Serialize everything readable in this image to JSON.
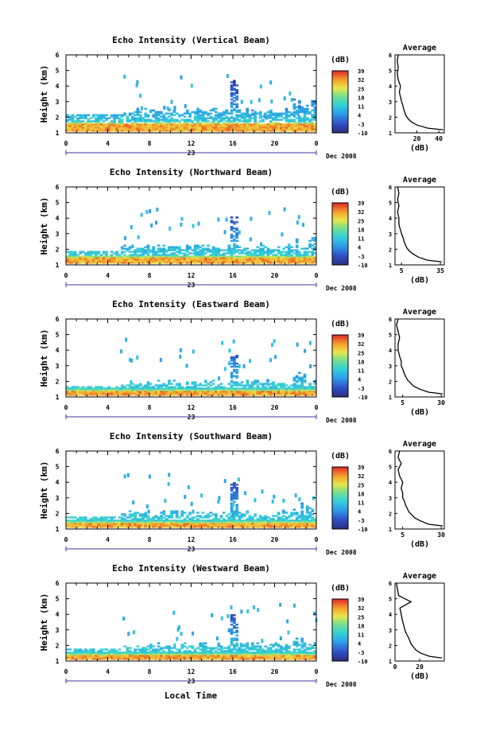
{
  "figure": {
    "xlabel_bottom": "Local Time",
    "day_label": "23",
    "date_label": "Dec 2008",
    "height_ylabel": "Height (km)",
    "cbar_unit": "(dB)",
    "avg_title": "Average",
    "avg_xlabel": "(dB)"
  },
  "chart_data": [
    {
      "type": "heatmap",
      "title": "Echo Intensity (Vertical Beam)",
      "xlim": [
        0,
        24
      ],
      "ylim": [
        1,
        6
      ],
      "x_ticks": [
        "0",
        "4",
        "8",
        "12",
        "16",
        "20",
        "0"
      ],
      "y_ticks": [
        "1",
        "2",
        "3",
        "4",
        "5",
        "6"
      ],
      "colorbar": {
        "ticks": [
          "39",
          "32",
          "25",
          "18",
          "11",
          "4",
          "-3",
          "-10"
        ],
        "range": [
          -10,
          39
        ]
      },
      "strong_layer": 1.4,
      "mid_top": 2.2,
      "average": {
        "title": "Average",
        "xlim": [
          0,
          45
        ],
        "xticks": [
          20,
          40
        ],
        "x": [
          44,
          30,
          20,
          15,
          12,
          10,
          9,
          8,
          7,
          6,
          5,
          4,
          5,
          3,
          2,
          3,
          2,
          3
        ],
        "y": [
          1.2,
          1.3,
          1.5,
          1.7,
          1.9,
          2.1,
          2.3,
          2.5,
          2.8,
          3.0,
          3.3,
          3.6,
          4.0,
          4.4,
          4.8,
          5.2,
          5.6,
          6.0
        ]
      }
    },
    {
      "type": "heatmap",
      "title": "Echo Intensity (Northward Beam)",
      "xlim": [
        0,
        24
      ],
      "ylim": [
        1,
        6
      ],
      "x_ticks": [
        "0",
        "4",
        "8",
        "12",
        "16",
        "20",
        "0"
      ],
      "y_ticks": [
        "1",
        "2",
        "3",
        "4",
        "5",
        "6"
      ],
      "colorbar": {
        "ticks": [
          "39",
          "32",
          "25",
          "18",
          "11",
          "4",
          "-3",
          "-10"
        ],
        "range": [
          -10,
          39
        ]
      },
      "strong_layer": 1.3,
      "mid_top": 1.9,
      "average": {
        "title": "Average",
        "xlim": [
          0,
          38
        ],
        "xticks": [
          5,
          35
        ],
        "x": [
          36,
          25,
          18,
          14,
          11,
          9,
          8,
          7,
          6,
          5,
          4,
          3,
          3,
          2,
          3,
          2,
          3,
          2
        ],
        "y": [
          1.2,
          1.3,
          1.5,
          1.7,
          1.9,
          2.1,
          2.3,
          2.5,
          2.8,
          3.0,
          3.3,
          3.6,
          4.0,
          4.4,
          4.8,
          5.2,
          5.6,
          6.0
        ]
      }
    },
    {
      "type": "heatmap",
      "title": "Echo Intensity (Eastward Beam)",
      "xlim": [
        0,
        24
      ],
      "ylim": [
        1,
        6
      ],
      "x_ticks": [
        "0",
        "4",
        "8",
        "12",
        "16",
        "20",
        "0"
      ],
      "y_ticks": [
        "1",
        "2",
        "3",
        "4",
        "5",
        "6"
      ],
      "colorbar": {
        "ticks": [
          "39",
          "32",
          "25",
          "18",
          "11",
          "4",
          "-3",
          "-10"
        ],
        "range": [
          -10,
          39
        ]
      },
      "strong_layer": 1.2,
      "mid_top": 1.7,
      "average": {
        "title": "Average",
        "xlim": [
          0,
          32
        ],
        "xticks": [
          5,
          30
        ],
        "x": [
          31,
          22,
          16,
          12,
          10,
          8,
          7,
          6,
          5,
          4,
          4,
          3,
          2,
          2,
          3,
          2,
          1,
          2
        ],
        "y": [
          1.2,
          1.3,
          1.5,
          1.7,
          1.9,
          2.1,
          2.3,
          2.5,
          2.8,
          3.0,
          3.3,
          3.6,
          4.0,
          4.4,
          4.8,
          5.2,
          5.6,
          6.0
        ]
      }
    },
    {
      "type": "heatmap",
      "title": "Echo Intensity (Southward Beam)",
      "xlim": [
        0,
        24
      ],
      "ylim": [
        1,
        6
      ],
      "x_ticks": [
        "0",
        "4",
        "8",
        "12",
        "16",
        "20",
        "0"
      ],
      "y_ticks": [
        "1",
        "2",
        "3",
        "4",
        "5",
        "6"
      ],
      "colorbar": {
        "ticks": [
          "39",
          "32",
          "25",
          "18",
          "11",
          "4",
          "-3",
          "-10"
        ],
        "range": [
          -10,
          39
        ]
      },
      "strong_layer": 1.2,
      "mid_top": 1.8,
      "average": {
        "title": "Average",
        "xlim": [
          0,
          32
        ],
        "xticks": [
          5,
          30
        ],
        "x": [
          31,
          22,
          17,
          13,
          11,
          9,
          8,
          7,
          6,
          5,
          5,
          4,
          5,
          3,
          2,
          4,
          2,
          3
        ],
        "y": [
          1.2,
          1.3,
          1.5,
          1.7,
          1.9,
          2.1,
          2.3,
          2.5,
          2.8,
          3.0,
          3.3,
          3.6,
          4.0,
          4.4,
          4.8,
          5.2,
          5.6,
          6.0
        ]
      }
    },
    {
      "type": "heatmap",
      "title": "Echo Intensity (Westward Beam)",
      "xlim": [
        0,
        24
      ],
      "ylim": [
        1,
        6
      ],
      "x_ticks": [
        "0",
        "4",
        "8",
        "12",
        "16",
        "20",
        "0"
      ],
      "y_ticks": [
        "1",
        "2",
        "3",
        "4",
        "5",
        "6"
      ],
      "colorbar": {
        "ticks": [
          "39",
          "32",
          "25",
          "18",
          "11",
          "4",
          "-3",
          "-10"
        ],
        "range": [
          -10,
          39
        ]
      },
      "strong_layer": 1.2,
      "mid_top": 1.8,
      "average": {
        "title": "Average",
        "xlim": [
          0,
          40
        ],
        "xticks": [
          0,
          20
        ],
        "x": [
          38,
          28,
          21,
          17,
          15,
          13,
          12,
          11,
          9,
          8,
          7,
          6,
          5,
          4,
          13,
          3,
          2,
          1
        ],
        "y": [
          1.2,
          1.3,
          1.5,
          1.7,
          1.9,
          2.1,
          2.3,
          2.5,
          2.8,
          3.0,
          3.3,
          3.6,
          4.0,
          4.4,
          4.8,
          5.2,
          5.6,
          6.0
        ]
      }
    }
  ]
}
